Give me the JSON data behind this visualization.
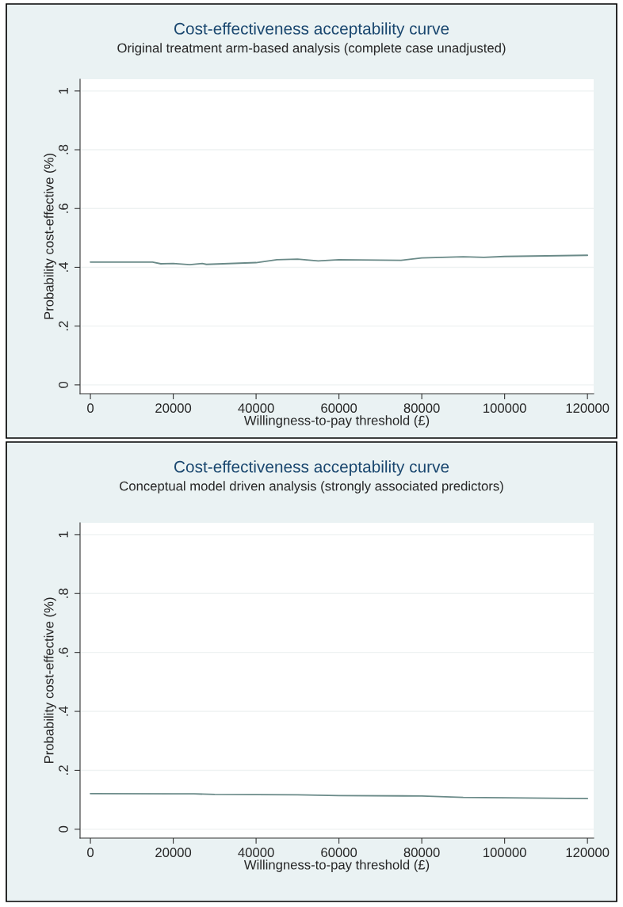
{
  "chart_data": [
    {
      "type": "line",
      "title": "Cost-effectiveness acceptability curve",
      "subtitle": "Original treatment arm-based analysis (complete case unadjusted)",
      "xlabel": "Willingness-to-pay threshold (£)",
      "ylabel": "Probability cost-effective (%)",
      "x": [
        0,
        15000,
        17000,
        20000,
        24000,
        27000,
        28000,
        40000,
        45000,
        50000,
        55000,
        60000,
        75000,
        80000,
        90000,
        95000,
        100000,
        120000
      ],
      "series": [
        {
          "color": "#6a8a88",
          "values": [
            0.418,
            0.418,
            0.412,
            0.413,
            0.409,
            0.413,
            0.41,
            0.416,
            0.426,
            0.428,
            0.422,
            0.426,
            0.424,
            0.432,
            0.436,
            0.434,
            0.437,
            0.441
          ]
        }
      ],
      "xlim": [
        -2500,
        121500
      ],
      "ylim": [
        -0.03,
        1.04
      ],
      "xticks": [
        0,
        20000,
        40000,
        60000,
        80000,
        100000,
        120000
      ],
      "yticks": [
        0,
        {
          "value": 0.2,
          "label": ".2"
        },
        {
          "value": 0.4,
          "label": ".4"
        },
        {
          "value": 0.6,
          "label": ".6"
        },
        {
          "value": 0.8,
          "label": ".8"
        },
        1
      ],
      "grid": "y"
    },
    {
      "type": "line",
      "title": "Cost-effectiveness acceptability curve",
      "subtitle": "Conceptual model driven analysis (strongly associated predictors)",
      "xlabel": "Willingness-to-pay threshold (£)",
      "ylabel": "Probability cost-effective (%)",
      "x": [
        0,
        20000,
        25000,
        30000,
        50000,
        60000,
        80000,
        90000,
        100000,
        120000
      ],
      "series": [
        {
          "color": "#6a8a88",
          "values": [
            0.121,
            0.12,
            0.12,
            0.118,
            0.117,
            0.114,
            0.113,
            0.108,
            0.107,
            0.104
          ]
        }
      ],
      "xlim": [
        -2500,
        121500
      ],
      "ylim": [
        -0.03,
        1.04
      ],
      "xticks": [
        0,
        20000,
        40000,
        60000,
        80000,
        100000,
        120000
      ],
      "yticks": [
        0,
        {
          "value": 0.2,
          "label": ".2"
        },
        {
          "value": 0.4,
          "label": ".4"
        },
        {
          "value": 0.6,
          "label": ".6"
        },
        {
          "value": 0.8,
          "label": ".8"
        },
        1
      ],
      "grid": "y"
    }
  ]
}
